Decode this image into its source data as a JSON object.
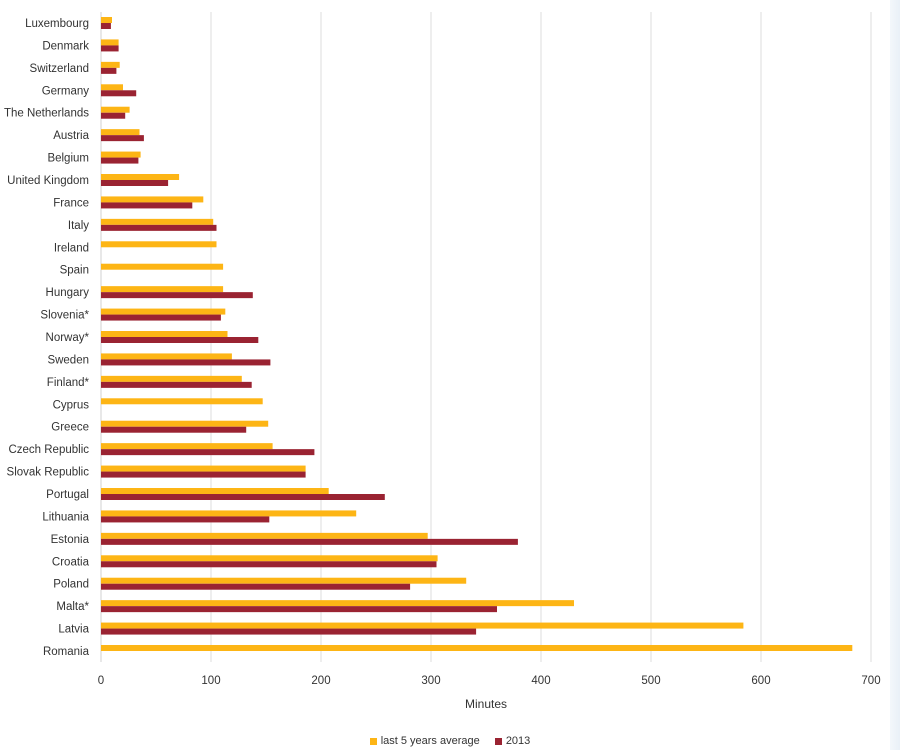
{
  "chart_data": {
    "type": "bar",
    "orientation": "horizontal",
    "title": "",
    "xlabel": "Minutes",
    "ylabel": "",
    "xlim": [
      0,
      700
    ],
    "xticks": [
      0,
      100,
      200,
      300,
      400,
      500,
      600,
      700
    ],
    "grid": true,
    "legend_position": "bottom-center",
    "categories": [
      "Luxembourg",
      "Denmark",
      "Switzerland",
      "Germany",
      "The Netherlands",
      "Austria",
      "Belgium",
      "United Kingdom",
      "France",
      "Italy",
      "Ireland",
      "Spain",
      "Hungary",
      "Slovenia*",
      "Norway*",
      "Sweden",
      "Finland*",
      "Cyprus",
      "Greece",
      "Czech Republic",
      "Slovak Republic",
      "Portugal",
      "Lithuania",
      "Estonia",
      "Croatia",
      "Poland",
      "Malta*",
      "Latvia",
      "Romania"
    ],
    "series": [
      {
        "name": "last 5 years average",
        "color": "#FDB515",
        "values": [
          10,
          16,
          17,
          20,
          26,
          35,
          36,
          71,
          93,
          102,
          105,
          111,
          111,
          113,
          115,
          119,
          128,
          147,
          152,
          156,
          186,
          207,
          232,
          297,
          306,
          332,
          430,
          584,
          683
        ]
      },
      {
        "name": "2013",
        "color": "#9A2332",
        "values": [
          9,
          16,
          14,
          32,
          22,
          39,
          34,
          61,
          83,
          105,
          null,
          null,
          138,
          109,
          143,
          154,
          137,
          null,
          132,
          194,
          186,
          258,
          153,
          379,
          305,
          281,
          360,
          341,
          null
        ]
      }
    ]
  }
}
